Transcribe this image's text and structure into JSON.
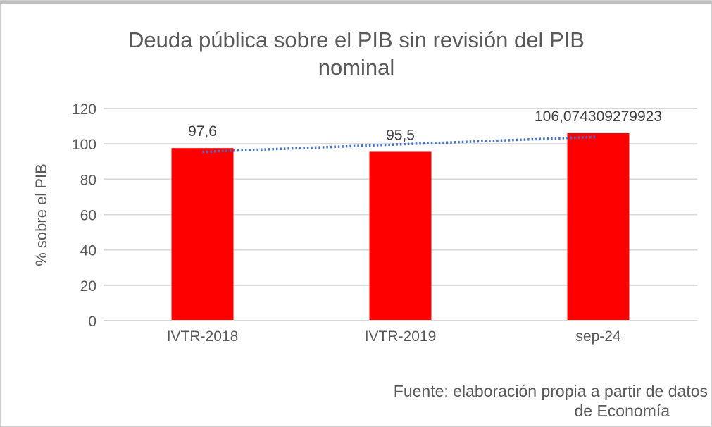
{
  "chart_data": {
    "type": "bar",
    "title_lines": [
      "Deuda pública sobre el PIB sin revisión del PIB",
      "nominal"
    ],
    "xlabel": "",
    "ylabel": "% sobre el PIB",
    "categories": [
      "IVTR-2018",
      "IVTR-2019",
      "sep-24"
    ],
    "values": [
      97.6,
      95.5,
      106.074309279923
    ],
    "data_labels": [
      "97,6",
      "95,5",
      "106,074309279923"
    ],
    "ylim": [
      0,
      120
    ],
    "yticks": [
      0,
      20,
      40,
      60,
      80,
      100,
      120
    ],
    "grid": true,
    "legend": "none",
    "trendline": {
      "type": "linear",
      "style": "dotted"
    },
    "colors": {
      "bar": "#ff0000",
      "trendline": "#4472c4",
      "grid": "#d9d9d9",
      "text": "#595959"
    },
    "source_lines": [
      "Fuente: elaboración propia a partir de datos",
      "de Economía"
    ]
  }
}
